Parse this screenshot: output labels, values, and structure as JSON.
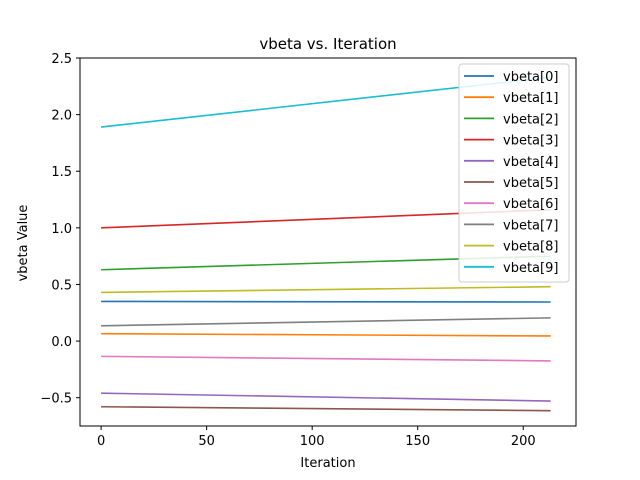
{
  "chart_data": {
    "type": "line",
    "title": "vbeta vs. Iteration",
    "xlabel": "Iteration",
    "ylabel": "vbeta Value",
    "xlim": [
      -10,
      225
    ],
    "ylim": [
      -0.75,
      2.5
    ],
    "xticks": [
      0,
      50,
      100,
      150,
      200
    ],
    "yticks": [
      -0.5,
      0.0,
      0.5,
      1.0,
      1.5,
      2.0,
      2.5
    ],
    "ytick_labels": [
      "−0.5",
      "0.0",
      "0.5",
      "1.0",
      "1.5",
      "2.0",
      "2.5"
    ],
    "legend_position": "top-right",
    "grid": false,
    "x": [
      0,
      213
    ],
    "series": [
      {
        "name": "vbeta[0]",
        "color": "#1f77b4",
        "values": [
          0.35,
          0.345
        ]
      },
      {
        "name": "vbeta[1]",
        "color": "#ff7f0e",
        "values": [
          0.065,
          0.045
        ]
      },
      {
        "name": "vbeta[2]",
        "color": "#2ca02c",
        "values": [
          0.63,
          0.75
        ]
      },
      {
        "name": "vbeta[3]",
        "color": "#d62728",
        "values": [
          1.0,
          1.16
        ]
      },
      {
        "name": "vbeta[4]",
        "color": "#9467bd",
        "values": [
          -0.46,
          -0.53
        ]
      },
      {
        "name": "vbeta[5]",
        "color": "#8c564b",
        "values": [
          -0.58,
          -0.615
        ]
      },
      {
        "name": "vbeta[6]",
        "color": "#e377c2",
        "values": [
          -0.135,
          -0.175
        ]
      },
      {
        "name": "vbeta[7]",
        "color": "#7f7f7f",
        "values": [
          0.135,
          0.205
        ]
      },
      {
        "name": "vbeta[8]",
        "color": "#bcbd22",
        "values": [
          0.43,
          0.48
        ]
      },
      {
        "name": "vbeta[9]",
        "color": "#17becf",
        "values": [
          1.89,
          2.33
        ]
      }
    ]
  }
}
